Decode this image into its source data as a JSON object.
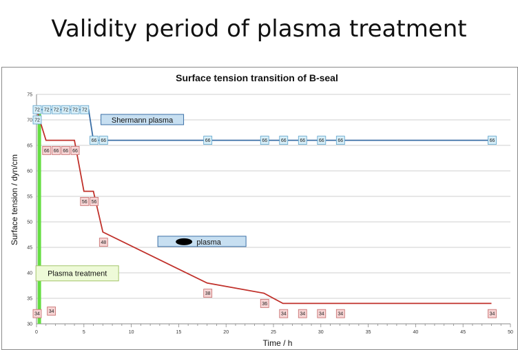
{
  "slide": {
    "title": "Validity period of plasma treatment"
  },
  "chart_data": {
    "type": "line",
    "title": "Surface tension transition of B-seal",
    "xlabel": "Time / h",
    "ylabel": "Surface tension  / dyn/cm",
    "xlim": [
      0,
      50
    ],
    "ylim": [
      30,
      75
    ],
    "xticks": [
      0,
      5,
      10,
      15,
      20,
      25,
      30,
      35,
      40,
      45,
      50
    ],
    "yticks": [
      30,
      35,
      40,
      45,
      50,
      55,
      60,
      65,
      70,
      75
    ],
    "grid": true,
    "series": [
      {
        "name": "Shermann plasma",
        "color": "#3a6ea5",
        "points": [
          [
            0,
            72
          ],
          [
            0.5,
            72
          ],
          [
            1.5,
            72
          ],
          [
            2.5,
            72
          ],
          [
            3.5,
            72
          ],
          [
            4.5,
            72
          ],
          [
            5.5,
            72
          ],
          [
            6,
            66
          ],
          [
            6.8,
            66
          ],
          [
            18,
            66
          ],
          [
            24,
            66
          ],
          [
            26,
            66
          ],
          [
            28,
            66
          ],
          [
            30,
            66
          ],
          [
            32,
            66
          ],
          [
            48,
            66
          ]
        ],
        "labels": [
          {
            "x": 0,
            "y": 70,
            "text": "72"
          },
          {
            "x": 0,
            "y": 72,
            "text": "72"
          },
          {
            "x": 1,
            "y": 72,
            "text": "72"
          },
          {
            "x": 2,
            "y": 72,
            "text": "72"
          },
          {
            "x": 3,
            "y": 72,
            "text": "72"
          },
          {
            "x": 4,
            "y": 72,
            "text": "72"
          },
          {
            "x": 5,
            "y": 72,
            "text": "72"
          },
          {
            "x": 6,
            "y": 66,
            "text": "66"
          },
          {
            "x": 7,
            "y": 66,
            "text": "66"
          },
          {
            "x": 18,
            "y": 66,
            "text": "66"
          },
          {
            "x": 24,
            "y": 66,
            "text": "66"
          },
          {
            "x": 26,
            "y": 66,
            "text": "66"
          },
          {
            "x": 28,
            "y": 66,
            "text": "66"
          },
          {
            "x": 30,
            "y": 66,
            "text": "66"
          },
          {
            "x": 32,
            "y": 66,
            "text": "66"
          },
          {
            "x": 48,
            "y": 66,
            "text": "66"
          }
        ]
      },
      {
        "name": "plasma",
        "color": "#c0302a",
        "points": [
          [
            0,
            72
          ],
          [
            1,
            66
          ],
          [
            4,
            66
          ],
          [
            5,
            56
          ],
          [
            6,
            56
          ],
          [
            7,
            48
          ],
          [
            18,
            38
          ],
          [
            24,
            36
          ],
          [
            26,
            34
          ],
          [
            48,
            34
          ]
        ],
        "labels": [
          {
            "x": 1,
            "y": 64,
            "text": "66"
          },
          {
            "x": 2,
            "y": 64,
            "text": "66"
          },
          {
            "x": 3,
            "y": 64,
            "text": "66"
          },
          {
            "x": 4,
            "y": 64,
            "text": "66"
          },
          {
            "x": 5,
            "y": 54,
            "text": "56"
          },
          {
            "x": 6,
            "y": 54,
            "text": "56"
          },
          {
            "x": 7,
            "y": 46,
            "text": "48"
          },
          {
            "x": 18,
            "y": 36,
            "text": "38"
          },
          {
            "x": 24,
            "y": 34,
            "text": "36"
          },
          {
            "x": 0,
            "y": 32,
            "text": "34"
          },
          {
            "x": 1.5,
            "y": 32.5,
            "text": "34"
          },
          {
            "x": 26,
            "y": 32,
            "text": "34"
          },
          {
            "x": 28,
            "y": 32,
            "text": "34"
          },
          {
            "x": 30,
            "y": 32,
            "text": "34"
          },
          {
            "x": 32,
            "y": 32,
            "text": "34"
          },
          {
            "x": 48,
            "y": 32,
            "text": "34"
          }
        ]
      }
    ],
    "annotations": [
      {
        "text": "Plasma treatment",
        "x": 4.3,
        "y": 39.9
      }
    ],
    "treatment_marker": {
      "x": 0.3,
      "color": "#66dd44"
    }
  }
}
